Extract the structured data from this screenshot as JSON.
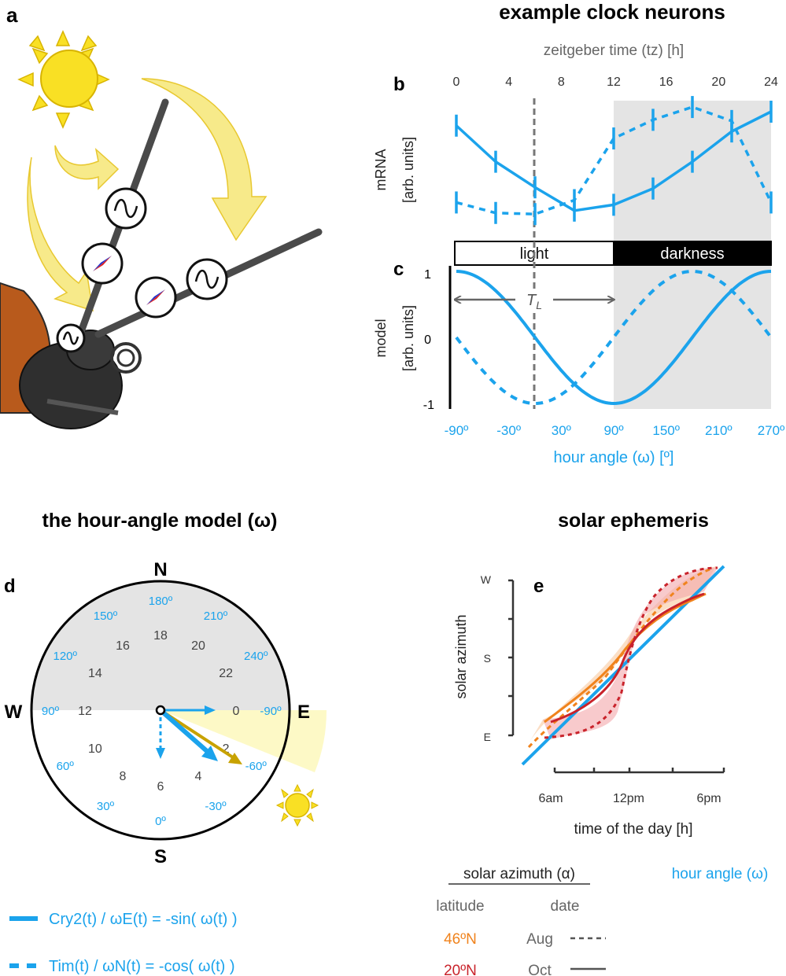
{
  "panel_labels": {
    "a": "a",
    "b": "b",
    "c": "c",
    "d": "d",
    "e": "e"
  },
  "titles": {
    "clock": "example clock neurons",
    "hour_model": "the hour-angle model (ω)",
    "ephemeris": "solar ephemeris"
  },
  "panel_b": {
    "top_axis_label": "zeitgeber time (tz) [h]",
    "top_ticks": [
      "0",
      "4",
      "8",
      "12",
      "16",
      "20",
      "24"
    ],
    "ylabel": "mRNA\n[arb. units]"
  },
  "light_bar": {
    "light": "light",
    "darkness": "darkness"
  },
  "panel_c": {
    "ylabel": "model\n[arb. units]",
    "yticks": [
      "1",
      "0",
      "-1"
    ],
    "tl_label": "TL",
    "bottom_ticks": [
      "-90º",
      "-30º",
      "30º",
      "90º",
      "150º",
      "210º",
      "270º"
    ],
    "xlabel": "hour angle (ω) [º]"
  },
  "chart_data": [
    {
      "type": "line",
      "panel": "b",
      "x_label": "zeitgeber time (tz) [h]",
      "y_label": "mRNA [arb. units]",
      "xlim": [
        0,
        24
      ],
      "series": [
        {
          "style": "solid",
          "x": [
            0,
            3,
            6,
            9,
            12,
            15,
            18,
            21,
            24
          ],
          "y": [
            0.88,
            0.57,
            0.35,
            0.15,
            0.2,
            0.34,
            0.57,
            0.83,
            1.0
          ]
        },
        {
          "style": "dashed",
          "x": [
            0,
            3,
            6,
            9,
            12,
            15,
            18,
            21,
            24
          ],
          "y": [
            0.22,
            0.13,
            0.12,
            0.24,
            0.77,
            0.93,
            1.04,
            0.92,
            0.22
          ]
        }
      ]
    },
    {
      "type": "line",
      "panel": "c",
      "x_label": "hour angle (ω) [º]",
      "y_label": "model [arb. units]",
      "xlim": [
        -90,
        270
      ],
      "ylim": [
        -1,
        1
      ],
      "series": [
        {
          "name": "Cry2(t) / ωE(t) = -sin( ω(t) )",
          "style": "solid",
          "function": "-sin(ω)"
        },
        {
          "name": "Tim(t) / ωN(t) = -cos( ω(t) )",
          "style": "dashed",
          "function": "-cos(ω)"
        }
      ]
    },
    {
      "type": "line",
      "panel": "e",
      "x_label": "time of the day [h]",
      "y_label": "solar azimuth",
      "x_ticks": [
        "6am",
        "12pm",
        "6pm"
      ],
      "y_ticks": [
        "E",
        "S",
        "W"
      ],
      "series": [
        {
          "name": "46ºN Aug",
          "color": "#f0831d",
          "style": "dashed"
        },
        {
          "name": "46ºN Oct",
          "color": "#f0831d",
          "style": "solid"
        },
        {
          "name": "20ºN Aug",
          "color": "#c9232b",
          "style": "dashed"
        },
        {
          "name": "20ºN Oct",
          "color": "#c9232b",
          "style": "solid"
        },
        {
          "name": "hour angle (ω)",
          "color": "#1ba3ec",
          "style": "solid"
        }
      ]
    }
  ],
  "dial": {
    "N": "N",
    "S": "S",
    "E": "E",
    "W": "W",
    "angles": [
      {
        "t": "180º"
      },
      {
        "t": "210º"
      },
      {
        "t": "240º"
      },
      {
        "t": "-90º"
      },
      {
        "t": "-60º"
      },
      {
        "t": "-30º"
      },
      {
        "t": "0º"
      },
      {
        "t": "30º"
      },
      {
        "t": "60º"
      },
      {
        "t": "90º"
      },
      {
        "t": "120º"
      },
      {
        "t": "150º"
      }
    ],
    "hours": [
      {
        "t": "18"
      },
      {
        "t": "20"
      },
      {
        "t": "22"
      },
      {
        "t": "0"
      },
      {
        "t": "2"
      },
      {
        "t": "4"
      },
      {
        "t": "6"
      },
      {
        "t": "8"
      },
      {
        "t": "10"
      },
      {
        "t": "12"
      },
      {
        "t": "14"
      },
      {
        "t": "16"
      }
    ]
  },
  "panel_e": {
    "ylabel": "solar azimuth",
    "yticks": [
      "W",
      "S",
      "E"
    ],
    "xticks": [
      "6am",
      "12pm",
      "6pm"
    ],
    "xlabel": "time of the day [h]"
  },
  "legend_e": {
    "solar_azimuth": "solar azimuth (α)",
    "hour_angle": "hour angle (ω)",
    "latitude": "latitude",
    "date": "date",
    "lat1": "46ºN",
    "lat2": "20ºN",
    "date1": "Aug",
    "date2": "Oct"
  },
  "legend_d": {
    "solid": "Cry2(t) / ωE(t) = -sin( ω(t) )",
    "dashed": "Tim(t)   /  ωN(t) = -cos( ω(t) )"
  },
  "colors": {
    "blue": "#1ba3ec",
    "orange": "#f0831d",
    "red": "#c9232b",
    "sun": "#f9e024",
    "night_shade": "#e4e4e4"
  }
}
